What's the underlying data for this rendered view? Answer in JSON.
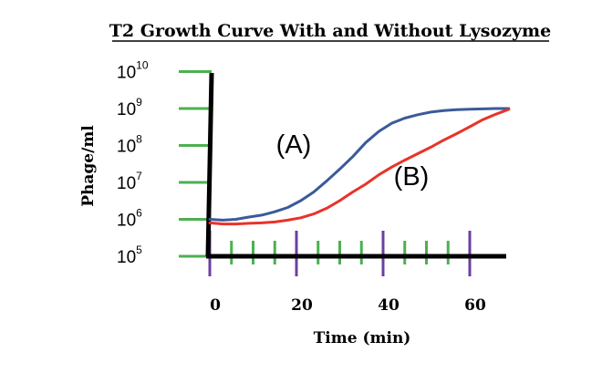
{
  "chart_data": {
    "type": "line",
    "title": "T2 Growth Curve With and Without Lysozyme",
    "xlabel": "Time  (min)",
    "ylabel": "Phage/ml",
    "xlim": [
      0,
      70
    ],
    "ylim_log10": [
      5,
      10
    ],
    "y_scale": "log",
    "grid": false,
    "x_ticks": [
      {
        "value": 0,
        "label": "0"
      },
      {
        "value": 20,
        "label": "20"
      },
      {
        "value": 40,
        "label": "40"
      },
      {
        "value": 60,
        "label": "60"
      }
    ],
    "x_minor_ticks": [
      5,
      10,
      15,
      25,
      30,
      35,
      45,
      50,
      55
    ],
    "y_ticks": [
      {
        "value": 100000.0,
        "base": "10",
        "exp": "5"
      },
      {
        "value": 1000000.0,
        "base": "10",
        "exp": "6"
      },
      {
        "value": 10000000.0,
        "base": "10",
        "exp": "7"
      },
      {
        "value": 100000000.0,
        "base": "10",
        "exp": "8"
      },
      {
        "value": 1000000000.0,
        "base": "10",
        "exp": "9"
      },
      {
        "value": 10000000000.0,
        "base": "10",
        "exp": "10"
      }
    ],
    "series": [
      {
        "name": "(A)",
        "color": "#3a5a9a",
        "x": [
          0,
          3,
          6,
          9,
          12,
          15,
          18,
          21,
          24,
          27,
          30,
          33,
          36,
          39,
          42,
          45,
          48,
          51,
          54,
          57,
          60,
          63,
          66,
          69
        ],
        "y": [
          1000000.0,
          950000.0,
          1000000.0,
          1150000.0,
          1300000.0,
          1600000.0,
          2100000.0,
          3200000.0,
          5500000.0,
          11000000.0,
          23000000.0,
          50000000.0,
          120000000.0,
          240000000.0,
          400000000.0,
          550000000.0,
          680000000.0,
          800000000.0,
          880000000.0,
          930000000.0,
          960000000.0,
          980000000.0,
          1000000000.0,
          1000000000.0
        ]
      },
      {
        "name": "(B)",
        "color": "#e8332a",
        "x": [
          0,
          3,
          6,
          9,
          12,
          15,
          18,
          21,
          24,
          27,
          30,
          33,
          36,
          39,
          42,
          45,
          48,
          51,
          54,
          57,
          60,
          63,
          66,
          69
        ],
        "y": [
          800000.0,
          750000.0,
          750000.0,
          780000.0,
          800000.0,
          850000.0,
          950000.0,
          1100000.0,
          1400000.0,
          2000000.0,
          3200000.0,
          5500000.0,
          9000000.0,
          16000000.0,
          26000000.0,
          40000000.0,
          60000000.0,
          90000000.0,
          140000000.0,
          210000000.0,
          320000000.0,
          500000000.0,
          700000000.0,
          950000000.0
        ]
      }
    ]
  }
}
